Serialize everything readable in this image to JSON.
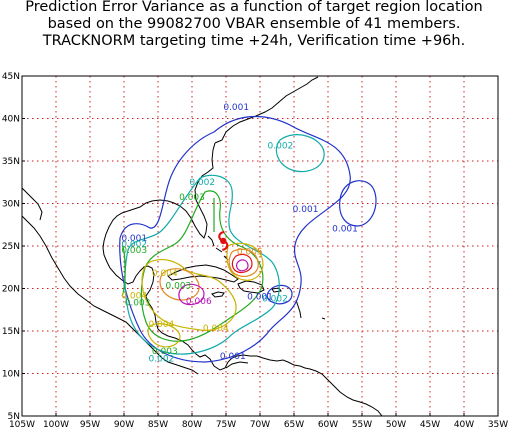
{
  "title": {
    "line1": "Prediction Error Variance as a function of target region location",
    "line2": "based on the 99082700 VBAR ensemble of 41 members.",
    "line3": "TRACKNORM targeting time +24h, Verification time +96h."
  },
  "axes": {
    "lon_ticks": [
      "105W",
      "100W",
      "95W",
      "90W",
      "85W",
      "80W",
      "75W",
      "70W",
      "65W",
      "60W",
      "55W",
      "50W",
      "45W",
      "40W",
      "35W"
    ],
    "lat_ticks": [
      "5N",
      "10N",
      "15N",
      "20N",
      "25N",
      "30N",
      "35N",
      "40N",
      "45N"
    ],
    "lon_range": [
      -105,
      -35
    ],
    "lat_range": [
      5,
      45
    ],
    "grid": true,
    "grid_style": "dotted",
    "grid_color": "#d22020"
  },
  "colors": {
    "blue": "#2233cc",
    "cyan": "#11aaaa",
    "green": "#22aa22",
    "yellow": "#c8b400",
    "orange": "#e08a1e",
    "red": "#e01010",
    "magenta": "#bb11bb"
  },
  "contour_labels": [
    {
      "text": "0.001",
      "lon": -73.5,
      "lat": 41.0,
      "color": "blue"
    },
    {
      "text": "0.001",
      "lon": -63.3,
      "lat": 29.0,
      "color": "blue"
    },
    {
      "text": "0.001",
      "lon": -57.5,
      "lat": 26.7,
      "color": "blue"
    },
    {
      "text": "0.001",
      "lon": -88.5,
      "lat": 25.6,
      "color": "blue"
    },
    {
      "text": "0.001",
      "lon": -74.0,
      "lat": 11.7,
      "color": "blue"
    },
    {
      "text": "0.002",
      "lon": -67.0,
      "lat": 36.5,
      "color": "cyan"
    },
    {
      "text": "0.002",
      "lon": -78.5,
      "lat": 32.2,
      "color": "cyan"
    },
    {
      "text": "0.002",
      "lon": -88.5,
      "lat": 24.9,
      "color": "cyan"
    },
    {
      "text": "0.002",
      "lon": -67.8,
      "lat": 18.5,
      "color": "cyan"
    },
    {
      "text": "0.002",
      "lon": -84.5,
      "lat": 11.4,
      "color": "cyan"
    },
    {
      "text": "0.003",
      "lon": -80.0,
      "lat": 30.4,
      "color": "green"
    },
    {
      "text": "0.003",
      "lon": -88.5,
      "lat": 24.2,
      "color": "green"
    },
    {
      "text": "0.003",
      "lon": -82.0,
      "lat": 20.0,
      "color": "green"
    },
    {
      "text": "0.003",
      "lon": -84.0,
      "lat": 12.3,
      "color": "green"
    },
    {
      "text": "0.003",
      "lon": -88.0,
      "lat": 18.0,
      "color": "green"
    },
    {
      "text": "0.004",
      "lon": -84.0,
      "lat": 21.5,
      "color": "yellow"
    },
    {
      "text": "0.004",
      "lon": -88.5,
      "lat": 18.8,
      "color": "yellow"
    },
    {
      "text": "0.004",
      "lon": -76.5,
      "lat": 15.0,
      "color": "yellow"
    },
    {
      "text": "0.004",
      "lon": -84.5,
      "lat": 15.5,
      "color": "yellow"
    },
    {
      "text": "0.005",
      "lon": -71.5,
      "lat": 24.0,
      "color": "orange"
    },
    {
      "text": "0.006",
      "lon": -79.0,
      "lat": 18.2,
      "color": "magenta"
    },
    {
      "text": "0.001",
      "lon": -70.0,
      "lat": 18.7,
      "color": "blue"
    }
  ],
  "verification_point": {
    "lon": -75.4,
    "lat": 25.6,
    "color": "red",
    "icon": "hurricane-symbol-icon"
  }
}
